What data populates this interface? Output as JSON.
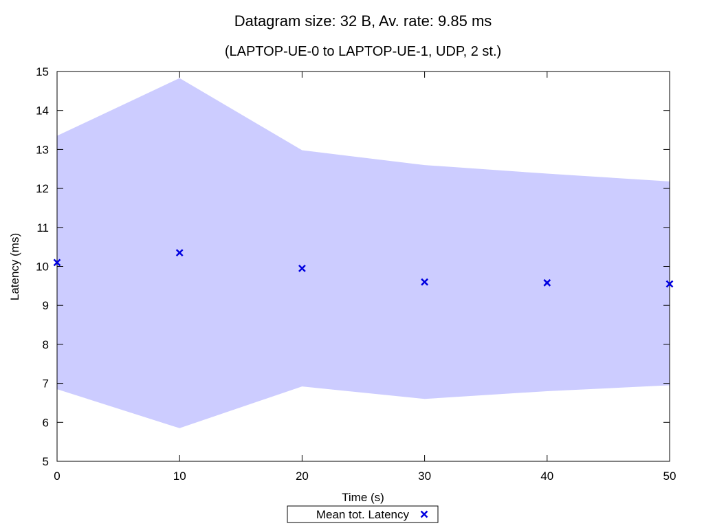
{
  "chart_data": {
    "type": "scatter",
    "title": "Datagram size: 32 B, Av. rate: 9.85 ms",
    "subtitle": "(LAPTOP-UE-0 to LAPTOP-UE-1, UDP, 2 st.)",
    "xlabel": "Time (s)",
    "ylabel": "Latency (ms)",
    "xlim": [
      0,
      50
    ],
    "ylim": [
      5,
      15
    ],
    "xticks": [
      "0",
      "10",
      "20",
      "30",
      "40",
      "50"
    ],
    "yticks": [
      "5",
      "6",
      "7",
      "8",
      "9",
      "10",
      "11",
      "12",
      "13",
      "14",
      "15"
    ],
    "grid": false,
    "legend_position": "bottom-center",
    "x": [
      0,
      10,
      20,
      30,
      40,
      50
    ],
    "series": [
      {
        "name": "Mean tot. Latency",
        "values": [
          10.1,
          10.35,
          9.95,
          9.6,
          9.58,
          9.55
        ],
        "color": "#0000e0",
        "marker": "x"
      }
    ],
    "band": {
      "upper": [
        13.35,
        14.83,
        12.98,
        12.6,
        12.38,
        12.18
      ],
      "lower": [
        6.85,
        5.85,
        6.92,
        6.6,
        6.8,
        6.95
      ],
      "color": "#ccccff"
    }
  }
}
